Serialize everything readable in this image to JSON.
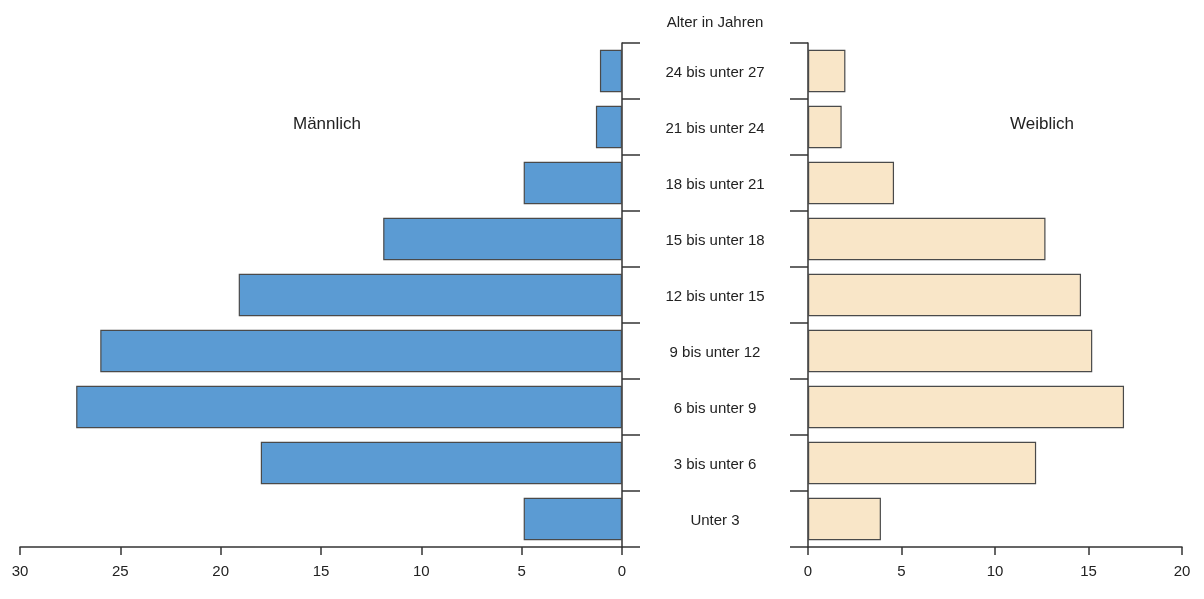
{
  "chart_data": [
    {
      "type": "bar",
      "orientation": "horizontal",
      "categories": [
        null,
        null,
        null,
        null,
        null,
        null,
        null,
        null,
        null
      ],
      "xlim": [
        30,
        0
      ],
      "xticks": [
        30,
        25,
        20,
        15,
        10,
        5,
        0
      ],
      "tick_labels": "x",
      "grid": false,
      "series": [
        {
          "name": "Männlich",
          "color": "#5b9bd3",
          "values": [
            1.1,
            1.3,
            4.9,
            11.9,
            19.1,
            26.0,
            27.2,
            18.0,
            4.9
          ]
        }
      ]
    },
    {
      "type": "bar",
      "orientation": "horizontal",
      "ylabel": "Alter in Jahren",
      "categories": [
        "24 bis unter 27",
        "21 bis unter 24",
        "18 bis unter 21",
        "15 bis unter 18",
        "12 bis unter 15",
        "9 bis unter 12",
        "6 bis unter 9",
        "3 bis unter 6",
        "Unter 3"
      ],
      "xlim": [
        0,
        20
      ],
      "xticks": [
        0,
        5,
        10,
        15,
        20
      ],
      "grid": false,
      "series": [
        {
          "name": "Weiblich",
          "color": "#f9e6c8",
          "values": [
            2.0,
            1.8,
            4.6,
            12.7,
            14.6,
            15.2,
            16.9,
            12.2,
            3.9
          ]
        }
      ]
    }
  ]
}
